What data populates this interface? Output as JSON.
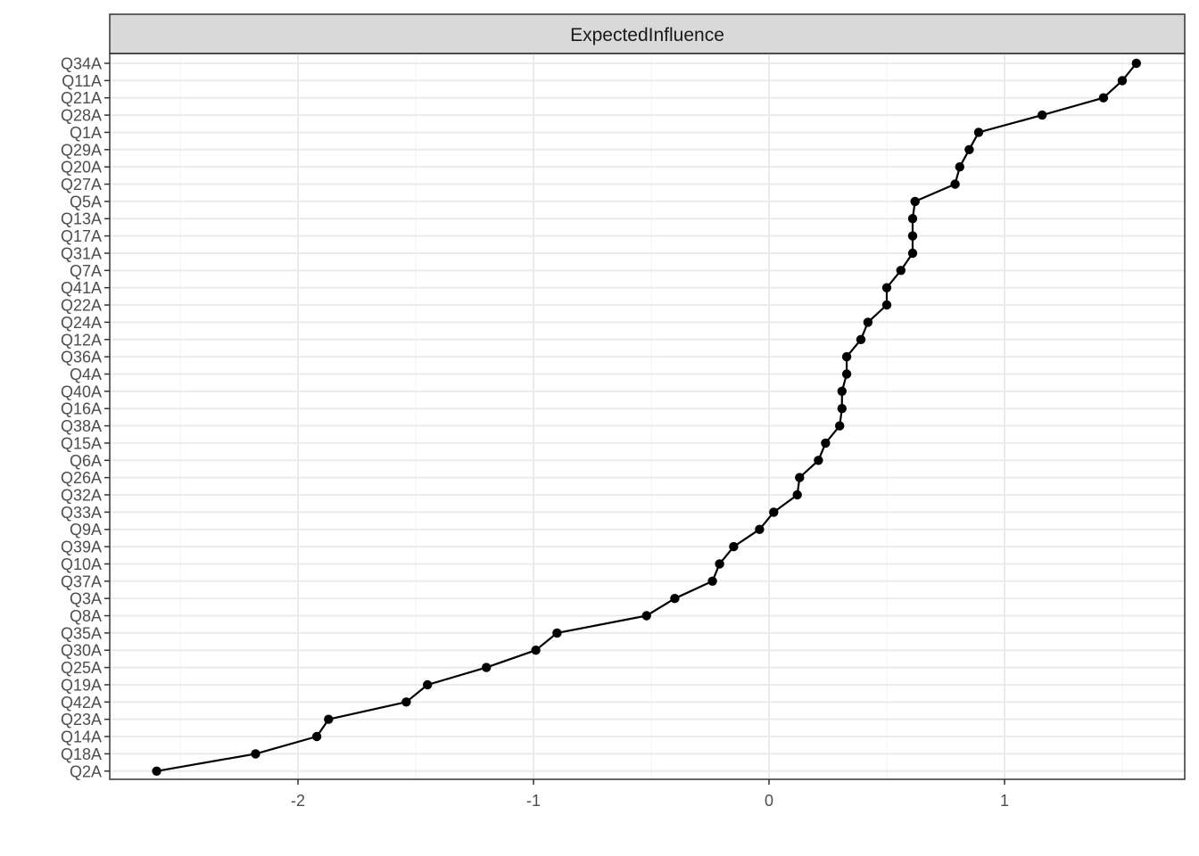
{
  "chart_data": {
    "type": "line",
    "panel_title": "ExpectedInfluence",
    "xlim": [
      -2.8,
      1.75
    ],
    "x_ticks": [
      -2,
      -1,
      0,
      1
    ],
    "x_tick_labels": [
      "-2",
      "-1",
      "0",
      "1"
    ],
    "grid": true,
    "theme": "bw",
    "series": [
      {
        "points": [
          {
            "label": "Q34A",
            "value": 1.56
          },
          {
            "label": "Q11A",
            "value": 1.5
          },
          {
            "label": "Q21A",
            "value": 1.42
          },
          {
            "label": "Q28A",
            "value": 1.16
          },
          {
            "label": "Q1A",
            "value": 0.89
          },
          {
            "label": "Q29A",
            "value": 0.85
          },
          {
            "label": "Q20A",
            "value": 0.81
          },
          {
            "label": "Q27A",
            "value": 0.79
          },
          {
            "label": "Q5A",
            "value": 0.62
          },
          {
            "label": "Q13A",
            "value": 0.61
          },
          {
            "label": "Q17A",
            "value": 0.61
          },
          {
            "label": "Q31A",
            "value": 0.61
          },
          {
            "label": "Q7A",
            "value": 0.56
          },
          {
            "label": "Q41A",
            "value": 0.5
          },
          {
            "label": "Q22A",
            "value": 0.5
          },
          {
            "label": "Q24A",
            "value": 0.42
          },
          {
            "label": "Q12A",
            "value": 0.39
          },
          {
            "label": "Q36A",
            "value": 0.33
          },
          {
            "label": "Q4A",
            "value": 0.33
          },
          {
            "label": "Q40A",
            "value": 0.31
          },
          {
            "label": "Q16A",
            "value": 0.31
          },
          {
            "label": "Q38A",
            "value": 0.3
          },
          {
            "label": "Q15A",
            "value": 0.24
          },
          {
            "label": "Q6A",
            "value": 0.21
          },
          {
            "label": "Q26A",
            "value": 0.13
          },
          {
            "label": "Q32A",
            "value": 0.12
          },
          {
            "label": "Q33A",
            "value": 0.02
          },
          {
            "label": "Q9A",
            "value": -0.04
          },
          {
            "label": "Q39A",
            "value": -0.15
          },
          {
            "label": "Q10A",
            "value": -0.21
          },
          {
            "label": "Q37A",
            "value": -0.24
          },
          {
            "label": "Q3A",
            "value": -0.4
          },
          {
            "label": "Q8A",
            "value": -0.52
          },
          {
            "label": "Q35A",
            "value": -0.9
          },
          {
            "label": "Q30A",
            "value": -0.99
          },
          {
            "label": "Q25A",
            "value": -1.2
          },
          {
            "label": "Q19A",
            "value": -1.45
          },
          {
            "label": "Q42A",
            "value": -1.54
          },
          {
            "label": "Q23A",
            "value": -1.87
          },
          {
            "label": "Q14A",
            "value": -1.92
          },
          {
            "label": "Q18A",
            "value": -2.18
          },
          {
            "label": "Q2A",
            "value": -2.6
          }
        ]
      }
    ],
    "colors": {
      "strip_fill": "#d9d9d9",
      "strip_border": "#333333",
      "panel_border": "#333333",
      "grid_major": "#ebebeb",
      "grid_minor": "#f5f5f5",
      "line": "#000000",
      "point": "#000000"
    }
  }
}
